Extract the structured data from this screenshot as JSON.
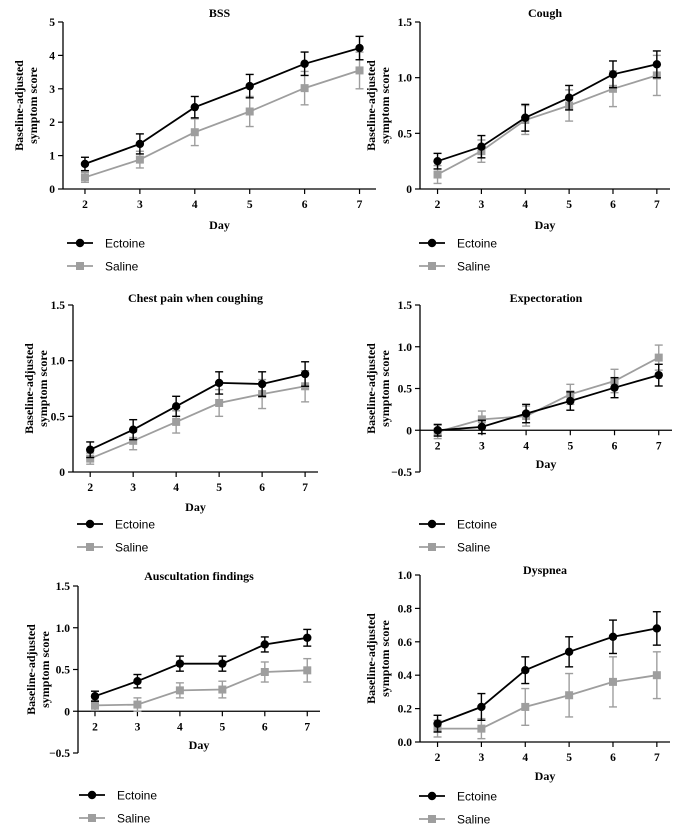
{
  "figure": {
    "colors": {
      "ectoine": "#000000",
      "saline": "#9e9e9e",
      "axis": "#000000"
    },
    "legend": [
      "Ectoine",
      "Saline"
    ]
  },
  "chart_data": [
    {
      "type": "line",
      "title": "BSS",
      "xlabel": "Day",
      "ylabel": [
        "Baseline-adjusted",
        "symptom score"
      ],
      "x": [
        2,
        3,
        4,
        5,
        6,
        7
      ],
      "xlim": [
        1.6,
        7.3
      ],
      "ylim": [
        0,
        5
      ],
      "yticks": [
        0,
        1,
        2,
        3,
        4,
        5
      ],
      "ytick_labels": [
        "0",
        "1",
        "2",
        "3",
        "4",
        "5"
      ],
      "zero_axis": false,
      "series": [
        {
          "name": "Ectoine",
          "values": [
            0.75,
            1.35,
            2.45,
            3.08,
            3.75,
            4.22
          ],
          "errors": [
            0.2,
            0.3,
            0.32,
            0.35,
            0.35,
            0.35
          ]
        },
        {
          "name": "Saline",
          "values": [
            0.35,
            0.88,
            1.7,
            2.32,
            3.02,
            3.55
          ],
          "errors": [
            0.15,
            0.25,
            0.4,
            0.45,
            0.5,
            0.55
          ]
        }
      ]
    },
    {
      "type": "line",
      "title": "Cough",
      "xlabel": "Day",
      "ylabel": [
        "Baseline-adjusted",
        "symptom score"
      ],
      "x": [
        2,
        3,
        4,
        5,
        6,
        7
      ],
      "xlim": [
        1.6,
        7.3
      ],
      "ylim": [
        0,
        1.5
      ],
      "yticks": [
        0,
        0.5,
        1.0,
        1.5
      ],
      "ytick_labels": [
        "0",
        "0.5",
        "1.0",
        "1.5"
      ],
      "zero_axis": false,
      "series": [
        {
          "name": "Ectoine",
          "values": [
            0.25,
            0.38,
            0.64,
            0.82,
            1.03,
            1.12
          ],
          "errors": [
            0.07,
            0.1,
            0.12,
            0.11,
            0.12,
            0.12
          ]
        },
        {
          "name": "Saline",
          "values": [
            0.13,
            0.34,
            0.62,
            0.75,
            0.9,
            1.02
          ],
          "errors": [
            0.08,
            0.1,
            0.13,
            0.14,
            0.16,
            0.18
          ]
        }
      ]
    },
    {
      "type": "line",
      "title": "Chest pain when coughing",
      "xlabel": "Day",
      "ylabel": [
        "Baseline-adjusted",
        "symptom score"
      ],
      "x": [
        2,
        3,
        4,
        5,
        6,
        7
      ],
      "xlim": [
        1.6,
        7.3
      ],
      "ylim": [
        0,
        1.5
      ],
      "yticks": [
        0,
        0.5,
        1.0,
        1.5
      ],
      "ytick_labels": [
        "0",
        "0.5",
        "1.0",
        "1.5"
      ],
      "zero_axis": false,
      "series": [
        {
          "name": "Ectoine",
          "values": [
            0.2,
            0.38,
            0.59,
            0.8,
            0.79,
            0.88
          ],
          "errors": [
            0.07,
            0.09,
            0.09,
            0.1,
            0.11,
            0.11
          ]
        },
        {
          "name": "Saline",
          "values": [
            0.12,
            0.28,
            0.45,
            0.62,
            0.7,
            0.77
          ],
          "errors": [
            0.05,
            0.08,
            0.1,
            0.12,
            0.13,
            0.14
          ]
        }
      ]
    },
    {
      "type": "line",
      "title": "Expectoration",
      "xlabel": "Day",
      "ylabel": [
        "Baseline-adjusted",
        "symptom score"
      ],
      "x": [
        2,
        3,
        4,
        5,
        6,
        7
      ],
      "xlim": [
        1.6,
        7.3
      ],
      "ylim": [
        -0.5,
        1.5
      ],
      "yticks": [
        -0.5,
        0,
        0.5,
        1.0,
        1.5
      ],
      "ytick_labels": [
        "−0.5",
        "0",
        "0.5",
        "1.0",
        "1.5"
      ],
      "zero_axis": true,
      "series": [
        {
          "name": "Ectoine",
          "values": [
            0.0,
            0.04,
            0.2,
            0.35,
            0.51,
            0.66
          ],
          "errors": [
            0.07,
            0.08,
            0.11,
            0.11,
            0.12,
            0.13
          ]
        },
        {
          "name": "Saline",
          "values": [
            -0.02,
            0.13,
            0.17,
            0.43,
            0.59,
            0.87
          ],
          "errors": [
            0.08,
            0.1,
            0.12,
            0.12,
            0.14,
            0.15
          ]
        }
      ]
    },
    {
      "type": "line",
      "title": "Auscultation findings",
      "xlabel": "Day",
      "ylabel": [
        "Baseline-adjusted",
        "symptom score"
      ],
      "x": [
        2,
        3,
        4,
        5,
        6,
        7
      ],
      "xlim": [
        1.6,
        7.3
      ],
      "ylim": [
        -0.5,
        1.5
      ],
      "yticks": [
        -0.5,
        0,
        0.5,
        1.0,
        1.5
      ],
      "ytick_labels": [
        "−0.5",
        "0",
        "0.5",
        "1.0",
        "1.5"
      ],
      "zero_axis": true,
      "series": [
        {
          "name": "Ectoine",
          "values": [
            0.18,
            0.36,
            0.57,
            0.57,
            0.8,
            0.88
          ],
          "errors": [
            0.06,
            0.08,
            0.09,
            0.09,
            0.09,
            0.1
          ]
        },
        {
          "name": "Saline",
          "values": [
            0.07,
            0.08,
            0.25,
            0.26,
            0.47,
            0.49
          ],
          "errors": [
            0.06,
            0.08,
            0.09,
            0.1,
            0.12,
            0.14
          ]
        }
      ]
    },
    {
      "type": "line",
      "title": "Dyspnea",
      "xlabel": "Day",
      "ylabel": [
        "Baseline-adjusted",
        "symptom score"
      ],
      "x": [
        2,
        3,
        4,
        5,
        6,
        7
      ],
      "xlim": [
        1.6,
        7.3
      ],
      "ylim": [
        0,
        1.0
      ],
      "yticks": [
        0,
        0.2,
        0.4,
        0.6,
        0.8,
        1.0
      ],
      "ytick_labels": [
        "0.0",
        "0.2",
        "0.4",
        "0.6",
        "0.8",
        "1.0"
      ],
      "zero_axis": false,
      "series": [
        {
          "name": "Ectoine",
          "values": [
            0.11,
            0.21,
            0.43,
            0.54,
            0.63,
            0.68
          ],
          "errors": [
            0.05,
            0.08,
            0.08,
            0.09,
            0.1,
            0.1
          ]
        },
        {
          "name": "Saline",
          "values": [
            0.08,
            0.08,
            0.21,
            0.28,
            0.36,
            0.4
          ],
          "errors": [
            0.05,
            0.06,
            0.11,
            0.13,
            0.15,
            0.14
          ]
        }
      ]
    }
  ]
}
